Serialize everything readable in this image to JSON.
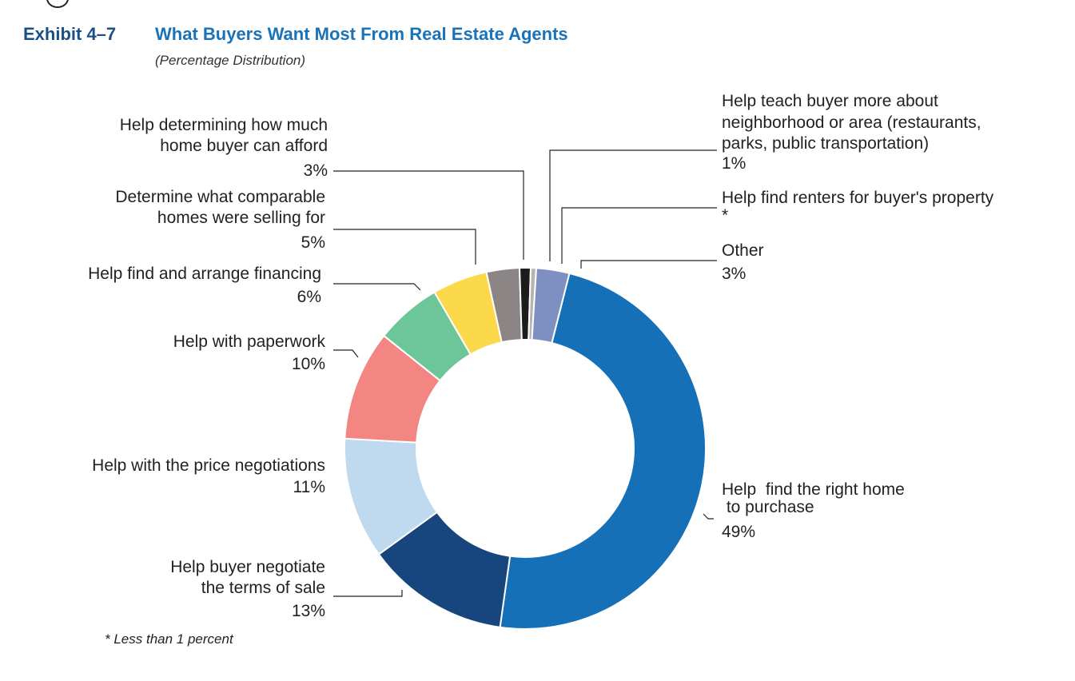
{
  "header": {
    "exhibit_number": "Exhibit 4–7",
    "title": "What Buyers Want Most From Real Estate Agents",
    "subtitle": "(Percentage Distribution)"
  },
  "footnote": "* Less than 1 percent",
  "chart_data": {
    "type": "pie",
    "style": "donut",
    "title": "What Buyers Want Most From Real Estate Agents",
    "subtitle": "(Percentage Distribution)",
    "unit": "percent",
    "slices": [
      {
        "key": "find_home",
        "label_lines": [
          "Help  find the right home",
          " to purchase"
        ],
        "value_label": "49%",
        "value": 49,
        "color": "#1570b8"
      },
      {
        "key": "negotiate_terms",
        "label_lines": [
          "Help buyer negotiate",
          "the terms of sale"
        ],
        "value_label": "13%",
        "value": 13,
        "color": "#17457d"
      },
      {
        "key": "price_negotiations",
        "label_lines": [
          "Help with the price negotiations"
        ],
        "value_label": "11%",
        "value": 11,
        "color": "#bfd9ee"
      },
      {
        "key": "paperwork",
        "label_lines": [
          "Help with paperwork"
        ],
        "value_label": "10%",
        "value": 10,
        "color": "#f38582"
      },
      {
        "key": "financing",
        "label_lines": [
          "Help find and arrange financing"
        ],
        "value_label": "6%",
        "value": 6,
        "color": "#6dc59a"
      },
      {
        "key": "comparable_homes",
        "label_lines": [
          "Determine what comparable",
          "homes were selling for"
        ],
        "value_label": "5%",
        "value": 5,
        "color": "#fcd94a"
      },
      {
        "key": "afford",
        "label_lines": [
          "Help determining how much",
          "home buyer can afford"
        ],
        "value_label": "3%",
        "value": 3,
        "color": "#8b8685"
      },
      {
        "key": "neighborhood",
        "label_lines": [
          "Help teach buyer more about",
          "neighborhood or area (restaurants,",
          "parks, public transportation)"
        ],
        "value_label": "1%",
        "value": 1,
        "color": "#1c1c1c"
      },
      {
        "key": "renters",
        "label_lines": [
          "Help find renters for buyer's property"
        ],
        "value_label": "*",
        "value": 0.5,
        "color": "#b9b3b2"
      },
      {
        "key": "other",
        "label_lines": [
          "Other"
        ],
        "value_label": "3%",
        "value": 3,
        "color": "#7e8fc2"
      }
    ]
  }
}
